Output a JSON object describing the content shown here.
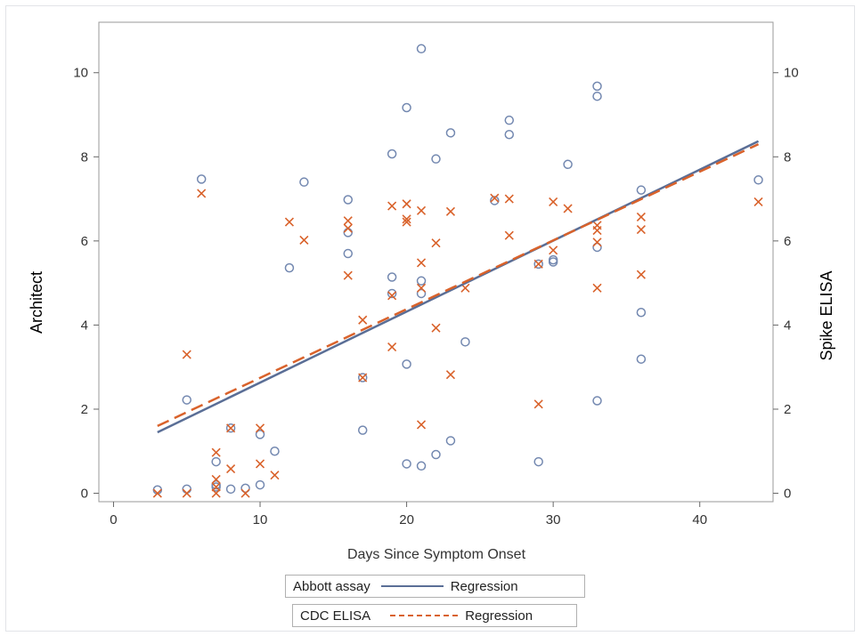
{
  "chart_data": {
    "type": "scatter",
    "xlabel": "Days Since Symptom Onset",
    "ylabel": "Architect",
    "y2label": "Spike ELISA",
    "xlim": [
      -1,
      45
    ],
    "ylim": [
      -0.2,
      11.2
    ],
    "x_ticks": [
      0,
      10,
      20,
      30,
      40
    ],
    "y_ticks": [
      0,
      2,
      4,
      6,
      8,
      10
    ],
    "y2_ticks": [
      0,
      2,
      4,
      6,
      8,
      10
    ],
    "grid": false,
    "legend_position": "bottom",
    "colors": {
      "abbott": "#7388b0",
      "cdc": "#d9622b",
      "abbott_line": "#5a6e96"
    },
    "series": [
      {
        "name": "Abbott assay",
        "marker": "circle",
        "points": [
          [
            3,
            0.08
          ],
          [
            5,
            0.1
          ],
          [
            5,
            2.22
          ],
          [
            6,
            7.47
          ],
          [
            7,
            0.75
          ],
          [
            7,
            0.2
          ],
          [
            7,
            0.15
          ],
          [
            8,
            0.1
          ],
          [
            8,
            1.55
          ],
          [
            9,
            0.12
          ],
          [
            10,
            0.2
          ],
          [
            10,
            1.4
          ],
          [
            11,
            1.0
          ],
          [
            12,
            5.36
          ],
          [
            13,
            7.4
          ],
          [
            16,
            6.98
          ],
          [
            16,
            6.2
          ],
          [
            16,
            5.7
          ],
          [
            17,
            1.5
          ],
          [
            17,
            2.75
          ],
          [
            19,
            8.07
          ],
          [
            19,
            5.14
          ],
          [
            19,
            4.75
          ],
          [
            20,
            9.17
          ],
          [
            20,
            3.07
          ],
          [
            20,
            0.7
          ],
          [
            21,
            10.57
          ],
          [
            21,
            5.05
          ],
          [
            21,
            4.75
          ],
          [
            21,
            0.65
          ],
          [
            22,
            7.95
          ],
          [
            22,
            0.92
          ],
          [
            23,
            8.57
          ],
          [
            23,
            1.25
          ],
          [
            24,
            3.6
          ],
          [
            26,
            6.96
          ],
          [
            27,
            8.87
          ],
          [
            27,
            8.53
          ],
          [
            29,
            0.75
          ],
          [
            29,
            5.45
          ],
          [
            30,
            5.55
          ],
          [
            30,
            5.5
          ],
          [
            31,
            7.82
          ],
          [
            33,
            9.68
          ],
          [
            33,
            9.44
          ],
          [
            33,
            5.85
          ],
          [
            33,
            2.2
          ],
          [
            36,
            7.21
          ],
          [
            36,
            4.3
          ],
          [
            36,
            3.19
          ],
          [
            44,
            7.45
          ]
        ],
        "regression": {
          "name": "Regression",
          "x": [
            3,
            44
          ],
          "y": [
            1.45,
            8.37
          ]
        }
      },
      {
        "name": "CDC ELISA",
        "marker": "x",
        "points": [
          [
            3,
            0.0
          ],
          [
            5,
            3.3
          ],
          [
            5,
            0.0
          ],
          [
            6,
            7.13
          ],
          [
            7,
            0.97
          ],
          [
            7,
            0.33
          ],
          [
            7,
            0.15
          ],
          [
            7,
            0.0
          ],
          [
            8,
            1.55
          ],
          [
            8,
            0.58
          ],
          [
            9,
            0.0
          ],
          [
            10,
            1.55
          ],
          [
            10,
            0.7
          ],
          [
            11,
            0.43
          ],
          [
            12,
            6.45
          ],
          [
            13,
            6.02
          ],
          [
            16,
            6.48
          ],
          [
            16,
            6.3
          ],
          [
            16,
            5.18
          ],
          [
            17,
            4.12
          ],
          [
            17,
            2.75
          ],
          [
            19,
            6.83
          ],
          [
            19,
            4.7
          ],
          [
            19,
            3.48
          ],
          [
            20,
            6.88
          ],
          [
            20,
            6.52
          ],
          [
            20,
            6.45
          ],
          [
            21,
            6.72
          ],
          [
            21,
            5.48
          ],
          [
            21,
            4.88
          ],
          [
            21,
            1.63
          ],
          [
            22,
            5.95
          ],
          [
            22,
            3.93
          ],
          [
            23,
            6.7
          ],
          [
            23,
            2.82
          ],
          [
            24,
            4.88
          ],
          [
            26,
            7.02
          ],
          [
            27,
            7.0
          ],
          [
            27,
            6.13
          ],
          [
            29,
            5.45
          ],
          [
            29,
            2.12
          ],
          [
            30,
            6.93
          ],
          [
            30,
            5.78
          ],
          [
            31,
            6.77
          ],
          [
            33,
            6.37
          ],
          [
            33,
            6.25
          ],
          [
            33,
            5.97
          ],
          [
            33,
            4.88
          ],
          [
            36,
            6.57
          ],
          [
            36,
            6.27
          ],
          [
            36,
            5.2
          ],
          [
            44,
            6.93
          ]
        ],
        "regression": {
          "name": "Regression",
          "x": [
            3,
            44
          ],
          "y": [
            1.6,
            8.3
          ]
        }
      }
    ]
  },
  "legend": {
    "row1_series": "Abbott assay",
    "row1_regression": "Regression",
    "row2_series": "CDC ELISA",
    "row2_regression": "Regression"
  }
}
